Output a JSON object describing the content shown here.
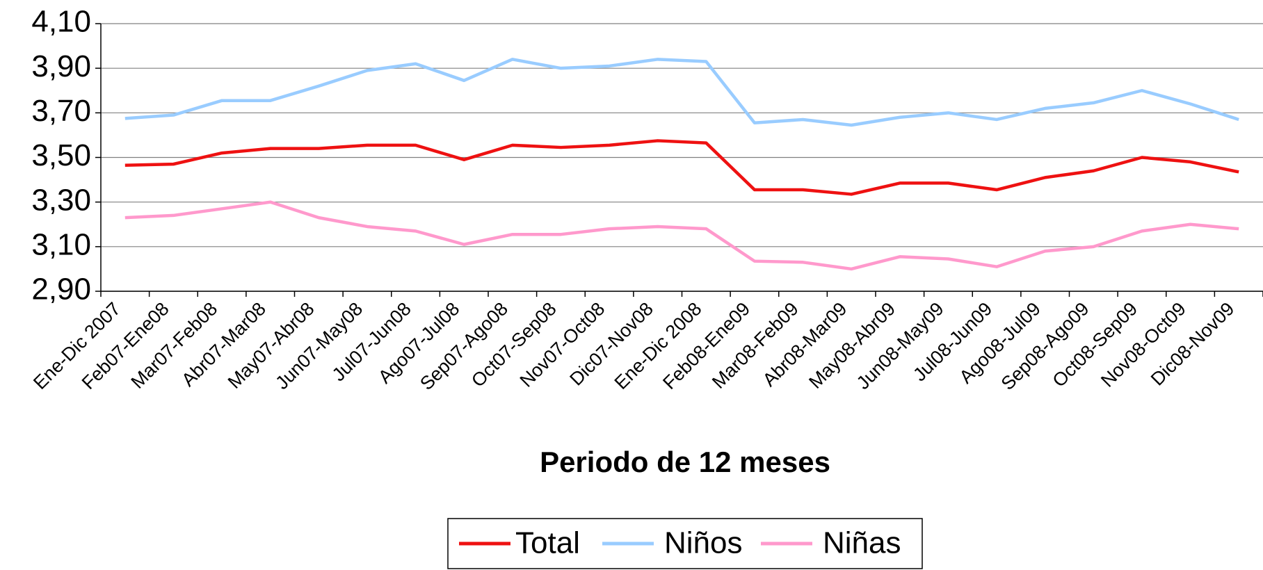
{
  "chart_data": {
    "type": "line",
    "xlabel": "Periodo de 12 meses",
    "categories": [
      "Ene-Dic 2007",
      "Feb07-Ene08",
      "Mar07-Feb08",
      "Abr07-Mar08",
      "May07-Abr08",
      "Jun07-May08",
      "Jul07-Jun08",
      "Ago07-Jul08",
      "Sep07-Ago08",
      "Oct07-Sep08",
      "Nov07-Oct08",
      "Dic07-Nov08",
      "Ene-Dic 2008",
      "Feb08-Ene09",
      "Mar08-Feb09",
      "Abr08-Mar09",
      "May08-Abr09",
      "Jun08-May09",
      "Jul08-Jun09",
      "Ago08-Jul09",
      "Sep08-Ago09",
      "Oct08-Sep09",
      "Nov08-Oct09",
      "Dic08-Nov09"
    ],
    "series": [
      {
        "name": "Total",
        "color": "#ee1111",
        "values": [
          3.465,
          3.47,
          3.52,
          3.54,
          3.54,
          3.555,
          3.555,
          3.49,
          3.555,
          3.545,
          3.555,
          3.575,
          3.565,
          3.355,
          3.355,
          3.335,
          3.385,
          3.385,
          3.355,
          3.41,
          3.44,
          3.5,
          3.48,
          3.435
        ]
      },
      {
        "name": "Niños",
        "color": "#99ccff",
        "values": [
          3.675,
          3.69,
          3.755,
          3.755,
          3.82,
          3.89,
          3.92,
          3.845,
          3.94,
          3.9,
          3.91,
          3.94,
          3.93,
          3.655,
          3.67,
          3.645,
          3.68,
          3.7,
          3.67,
          3.72,
          3.745,
          3.8,
          3.74,
          3.67
        ]
      },
      {
        "name": "Niñas",
        "color": "#ff99cc",
        "values": [
          3.23,
          3.24,
          3.27,
          3.3,
          3.23,
          3.19,
          3.17,
          3.11,
          3.155,
          3.155,
          3.18,
          3.19,
          3.18,
          3.035,
          3.03,
          3.0,
          3.055,
          3.045,
          3.01,
          3.08,
          3.1,
          3.17,
          3.2,
          3.18
        ]
      }
    ],
    "ylim": [
      2.9,
      4.1
    ],
    "yticks": [
      {
        "value": 2.9,
        "label": "2,90"
      },
      {
        "value": 3.1,
        "label": "3,10"
      },
      {
        "value": 3.3,
        "label": "3,30"
      },
      {
        "value": 3.5,
        "label": "3,50"
      },
      {
        "value": 3.7,
        "label": "3,70"
      },
      {
        "value": 3.9,
        "label": "3,90"
      },
      {
        "value": 4.1,
        "label": "4,10"
      }
    ],
    "grid": true,
    "legend": "bottom"
  }
}
